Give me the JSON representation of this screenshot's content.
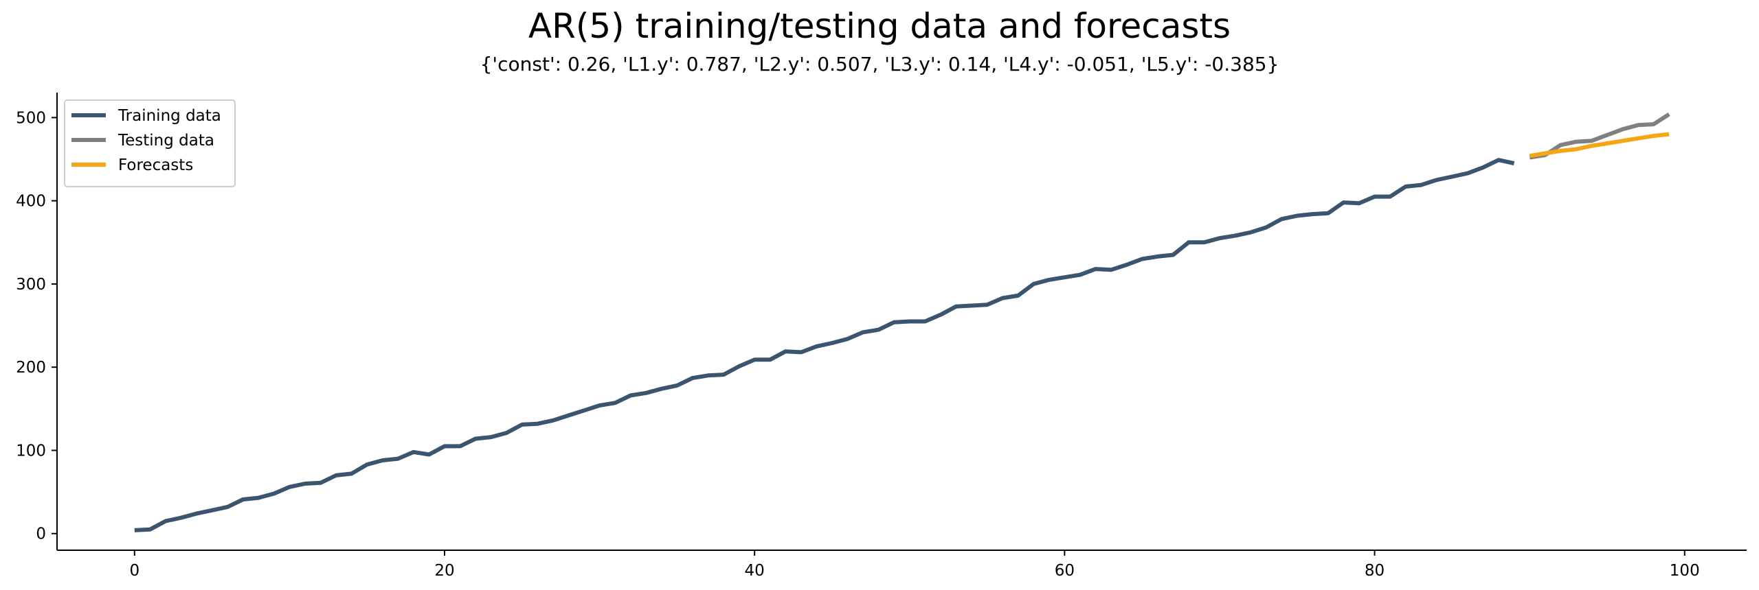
{
  "chart_data": {
    "type": "line",
    "title": "AR(5) training/testing data and forecasts",
    "subtitle": "{'const': 0.26, 'L1.y': 0.787, 'L2.y': 0.507, 'L3.y': 0.14, 'L4.y': -0.051, 'L5.y': -0.385}",
    "xlabel": "",
    "ylabel": "",
    "xlim": [
      -5,
      104
    ],
    "ylim": [
      -20,
      530
    ],
    "xticks": [
      0,
      20,
      40,
      60,
      80,
      100
    ],
    "yticks": [
      0,
      100,
      200,
      300,
      400,
      500
    ],
    "grid": false,
    "legend_position": "upper-left",
    "series": [
      {
        "name": "Training data",
        "color": "#3b556f",
        "x": [
          0,
          1,
          2,
          3,
          4,
          5,
          6,
          7,
          8,
          9,
          10,
          11,
          12,
          13,
          14,
          15,
          16,
          17,
          18,
          19,
          20,
          21,
          22,
          23,
          24,
          25,
          26,
          27,
          28,
          29,
          30,
          31,
          32,
          33,
          34,
          35,
          36,
          37,
          38,
          39,
          40,
          41,
          42,
          43,
          44,
          45,
          46,
          47,
          48,
          49,
          50,
          51,
          52,
          53,
          54,
          55,
          56,
          57,
          58,
          59,
          60,
          61,
          62,
          63,
          64,
          65,
          66,
          67,
          68,
          69,
          70,
          71,
          72,
          73,
          74,
          75,
          76,
          77,
          78,
          79,
          80,
          81,
          82,
          83,
          84,
          85,
          86,
          87,
          88,
          89
        ],
        "y": [
          4,
          5,
          15,
          19,
          24,
          28,
          32,
          41,
          43,
          48,
          56,
          60,
          61,
          70,
          72,
          83,
          88,
          90,
          98,
          95,
          105,
          105,
          114,
          116,
          121,
          131,
          132,
          136,
          142,
          148,
          154,
          157,
          166,
          169,
          174,
          178,
          187,
          190,
          191,
          201,
          209,
          209,
          219,
          218,
          225,
          229,
          234,
          242,
          245,
          254,
          255,
          255,
          263,
          273,
          274,
          275,
          283,
          286,
          300,
          305,
          308,
          311,
          318,
          317,
          323,
          330,
          333,
          335,
          350,
          350,
          355,
          358,
          362,
          368,
          378,
          382,
          384,
          385,
          398,
          397,
          405,
          405,
          417,
          419,
          425,
          429,
          433,
          440,
          449,
          445
        ]
      },
      {
        "name": "Testing data",
        "color": "#808080",
        "x": [
          90,
          91,
          92,
          93,
          94,
          95,
          96,
          97,
          98,
          99
        ],
        "y": [
          452,
          455,
          467,
          471,
          472,
          479,
          486,
          491,
          492,
          504
        ]
      },
      {
        "name": "Forecasts",
        "color": "#f5a614",
        "x": [
          90,
          91,
          92,
          93,
          94,
          95,
          96,
          97,
          98,
          99
        ],
        "y": [
          454,
          457,
          460,
          462,
          466,
          469,
          472,
          475,
          478,
          480
        ]
      }
    ]
  }
}
